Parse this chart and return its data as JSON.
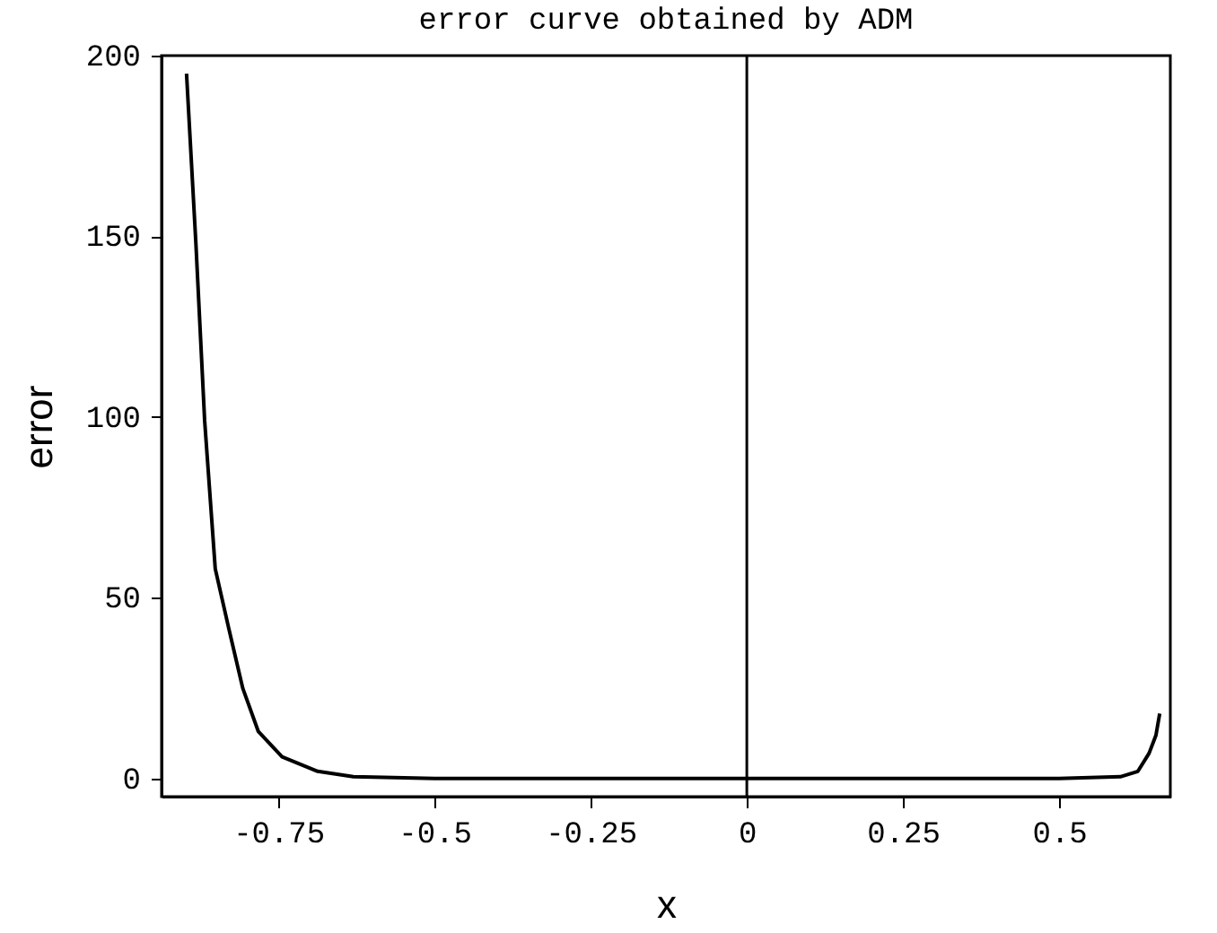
{
  "chart_data": {
    "type": "line",
    "title": "error curve obtained by ADM",
    "xlabel": "x",
    "ylabel": "error",
    "x": [
      -0.897,
      -0.882,
      -0.868,
      -0.851,
      -0.83,
      -0.807,
      -0.782,
      -0.744,
      -0.687,
      -0.63,
      -0.5,
      -0.25,
      0,
      0.25,
      0.5,
      0.598,
      0.626,
      0.644,
      0.655,
      0.661
    ],
    "series": [
      {
        "color": "#000000",
        "values": [
          195,
          148,
          99,
          58,
          42,
          25,
          13,
          6,
          2,
          0.5,
          0,
          0,
          0,
          0,
          0,
          0.5,
          2,
          7,
          12,
          18
        ]
      }
    ],
    "xlim": [
      -0.937,
      0.678
    ],
    "ylim": [
      -5,
      200
    ],
    "xticks": [
      -0.75,
      -0.5,
      -0.25,
      0,
      0.25,
      0.5
    ],
    "yticks": [
      0,
      50,
      100,
      150,
      200
    ],
    "ref_lines": [
      {
        "axis": "x",
        "value": 0,
        "color": "#000000"
      }
    ],
    "grid": false,
    "marker": "none",
    "line_style": "solid"
  }
}
